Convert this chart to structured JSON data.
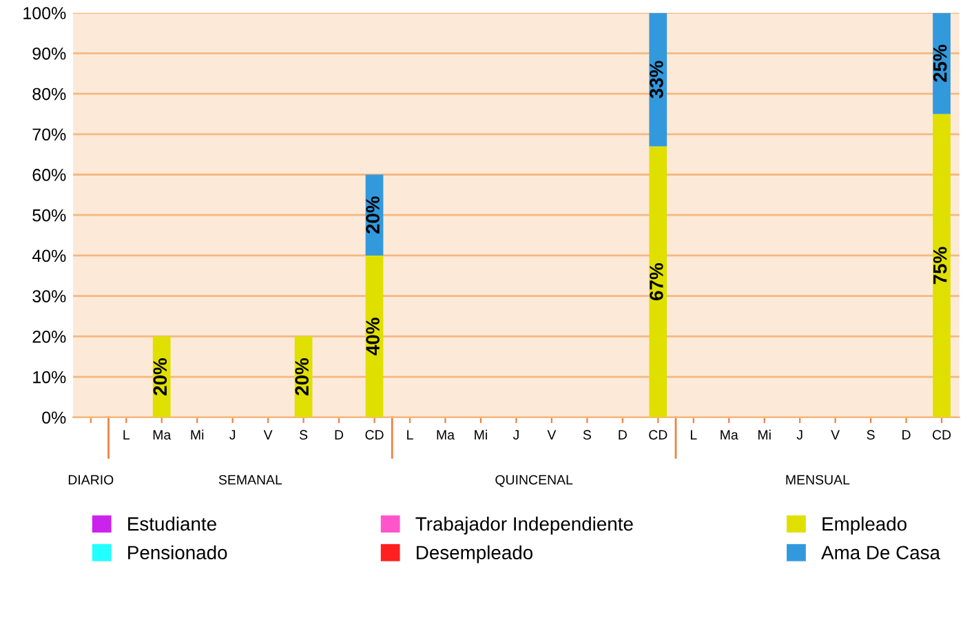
{
  "chart_data": {
    "type": "bar",
    "stacked": true,
    "categories": [
      null,
      "L",
      "Ma",
      "Mi",
      "J",
      "V",
      "S",
      "D",
      "CD",
      "L",
      "Ma",
      "Mi",
      "J",
      "V",
      "S",
      "D",
      "CD",
      "L",
      "Ma",
      "Mi",
      "J",
      "V",
      "S",
      "D",
      "CD"
    ],
    "series": [
      {
        "name": "Estudiante",
        "color": "#cc22ee",
        "values": [
          null,
          null,
          null,
          null,
          null,
          null,
          null,
          null,
          null,
          null,
          null,
          null,
          null,
          null,
          null,
          null,
          null,
          null,
          null,
          null,
          null,
          null,
          null,
          null,
          null
        ]
      },
      {
        "name": "Trabajador Independiente",
        "color": "#ff55cc",
        "values": [
          null,
          null,
          null,
          null,
          null,
          null,
          null,
          null,
          null,
          null,
          null,
          null,
          null,
          null,
          null,
          null,
          null,
          null,
          null,
          null,
          null,
          null,
          null,
          null,
          null
        ]
      },
      {
        "name": "Empleado",
        "color": "#e0e000",
        "values": [
          null,
          null,
          20,
          null,
          null,
          null,
          20,
          null,
          40,
          null,
          null,
          null,
          null,
          null,
          null,
          null,
          67,
          null,
          null,
          null,
          null,
          null,
          null,
          null,
          75
        ],
        "value_labels": [
          null,
          null,
          "20%",
          null,
          null,
          null,
          "20%",
          null,
          "40%",
          null,
          null,
          null,
          null,
          null,
          null,
          null,
          "67%",
          null,
          null,
          null,
          null,
          null,
          null,
          null,
          "75%"
        ]
      },
      {
        "name": "Pensionado",
        "color": "#22ffff",
        "values": [
          null,
          null,
          null,
          null,
          null,
          null,
          null,
          null,
          null,
          null,
          null,
          null,
          null,
          null,
          null,
          null,
          null,
          null,
          null,
          null,
          null,
          null,
          null,
          null,
          null
        ]
      },
      {
        "name": "Desempleado",
        "color": "#ff2020",
        "values": [
          null,
          null,
          null,
          null,
          null,
          null,
          null,
          null,
          null,
          null,
          null,
          null,
          null,
          null,
          null,
          null,
          null,
          null,
          null,
          null,
          null,
          null,
          null,
          null,
          null
        ]
      },
      {
        "name": "Ama De Casa",
        "color": "#3399dd",
        "values": [
          null,
          null,
          null,
          null,
          null,
          null,
          null,
          null,
          20,
          null,
          null,
          null,
          null,
          null,
          null,
          null,
          33,
          null,
          null,
          null,
          null,
          null,
          null,
          null,
          25
        ],
        "value_labels": [
          null,
          null,
          null,
          null,
          null,
          null,
          null,
          null,
          "20%",
          null,
          null,
          null,
          null,
          null,
          null,
          null,
          "33%",
          null,
          null,
          null,
          null,
          null,
          null,
          null,
          "25%"
        ]
      }
    ],
    "ylim": [
      0,
      100
    ],
    "yticks": [
      {
        "value": 0,
        "label": "0%"
      },
      {
        "value": 10,
        "label": "10%"
      },
      {
        "value": 20,
        "label": "20%"
      },
      {
        "value": 30,
        "label": "30%"
      },
      {
        "value": 40,
        "label": "40%"
      },
      {
        "value": 50,
        "label": "50%"
      },
      {
        "value": 60,
        "label": "60%"
      },
      {
        "value": 70,
        "label": "70%"
      },
      {
        "value": 80,
        "label": "80%"
      },
      {
        "value": 90,
        "label": "90%"
      },
      {
        "value": 100,
        "label": "100%"
      }
    ],
    "grid": "y",
    "legend": "bottom",
    "annotations": [
      "DIARIO",
      "SEMANAL",
      "QUINCENAL",
      "MENSUAL"
    ]
  }
}
